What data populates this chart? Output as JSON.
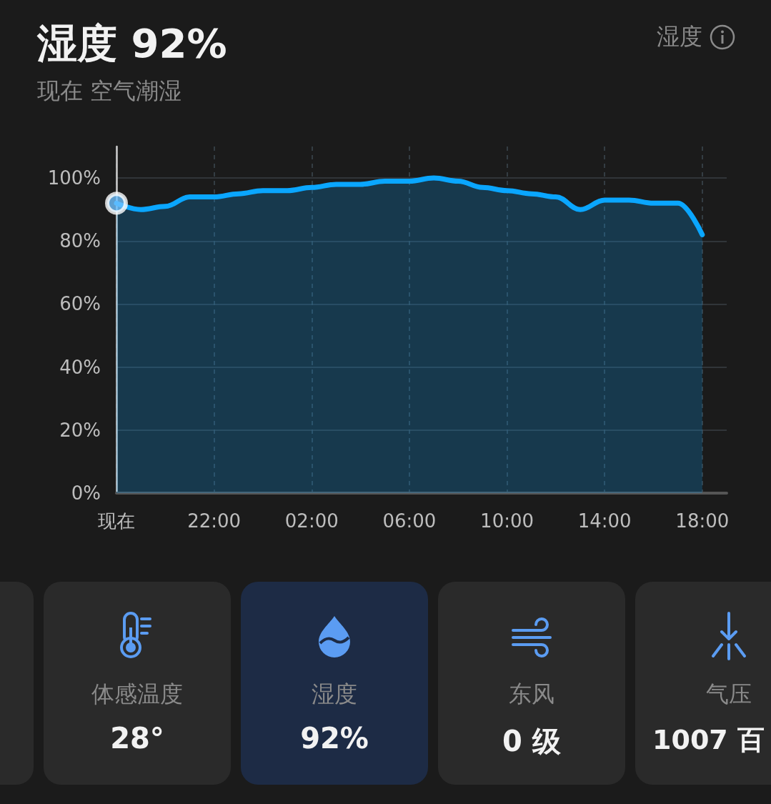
{
  "chart_data": {
    "type": "area",
    "title": "湿度 92%",
    "subtitle": "现在 空气潮湿",
    "annotations": [
      "湿度",
      "体感温度",
      "28°",
      "湿度",
      "92%",
      "东风",
      "0 级",
      "气压",
      "1007 百"
    ],
    "categories": [
      "现在",
      null,
      null,
      null,
      "22:00",
      null,
      null,
      null,
      "02:00",
      null,
      null,
      null,
      "06:00",
      null,
      null,
      null,
      "10:00",
      null,
      null,
      null,
      "14:00",
      null,
      null,
      null,
      "18:00",
      null
    ],
    "series": [
      {
        "color": "#0aa6ff",
        "marker": "none",
        "values": [
          92,
          90,
          91,
          94,
          94,
          95,
          96,
          96,
          97,
          98,
          98,
          99,
          99,
          100,
          99,
          97,
          96,
          95,
          94,
          90,
          93,
          93,
          92,
          92,
          82,
          null
        ]
      },
      {
        "type": "scatter",
        "marker": "circle",
        "x": [
          "现在"
        ],
        "color": "#6ec1ff",
        "values": [
          92
        ]
      }
    ],
    "ylim": [
      0,
      110
    ],
    "yticks": [
      {
        "value": 0,
        "label": "0%"
      },
      {
        "value": 20,
        "label": "20%"
      },
      {
        "value": 40,
        "label": "40%"
      },
      {
        "value": 60,
        "label": "60%"
      },
      {
        "value": 80,
        "label": "80%"
      },
      {
        "value": 100,
        "label": "100%"
      }
    ],
    "grid": true,
    "line_style": "solid"
  }
}
